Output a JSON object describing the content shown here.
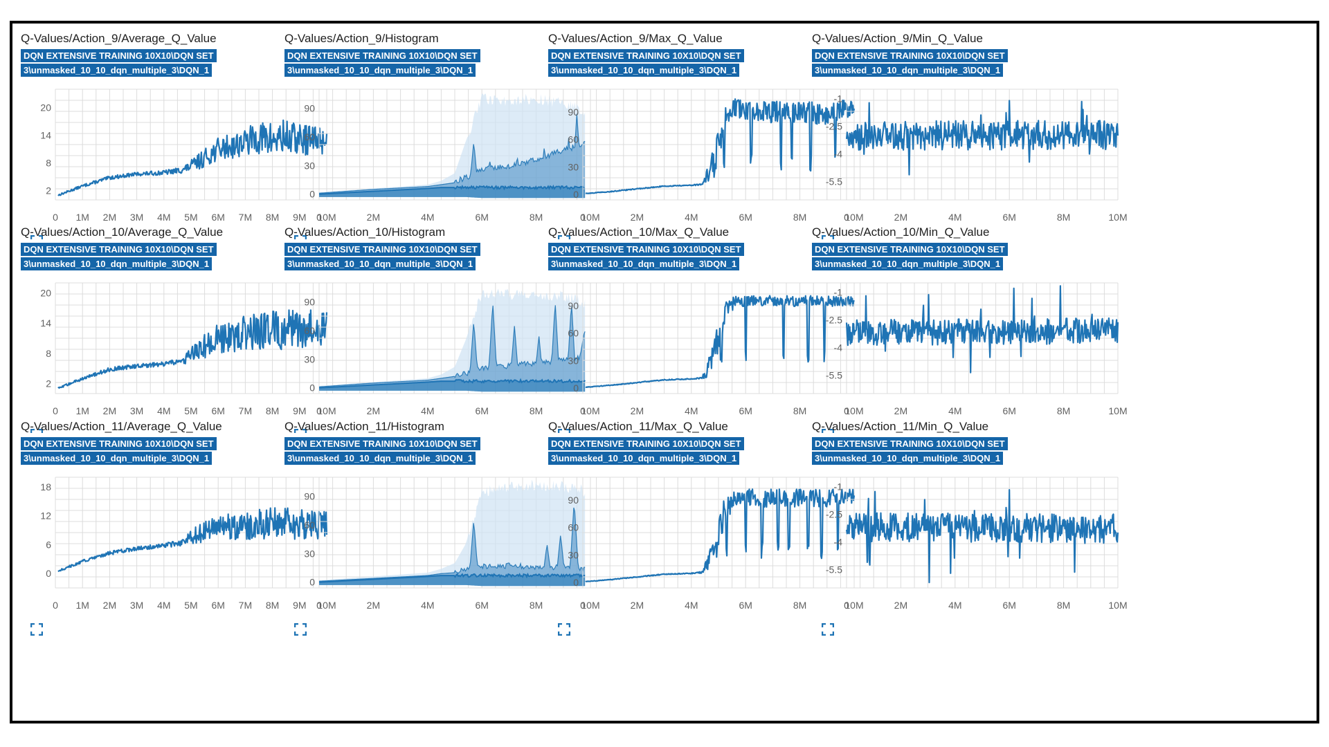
{
  "colors": {
    "series": "#1f74b5",
    "band": "#cfe3f3",
    "grid": "#dcdcdc",
    "tag_bg": "#1565a8"
  },
  "panels": [
    {
      "title": "Q-Values/Action_9/Average_Q_Value",
      "run_line1": "DQN EXTENSIVE TRAINING 10X10\\DQN SET",
      "run_line2": "3\\unmasked_10_10_dqn_multiple_3\\DQN_1",
      "expand_icon": "fullscreen-icon"
    },
    {
      "title": "Q-Values/Action_9/Histogram",
      "run_line1": "DQN EXTENSIVE TRAINING 10X10\\DQN SET",
      "run_line2": "3\\unmasked_10_10_dqn_multiple_3\\DQN_1",
      "expand_icon": "fullscreen-icon"
    },
    {
      "title": "Q-Values/Action_9/Max_Q_Value",
      "run_line1": "DQN EXTENSIVE TRAINING 10X10\\DQN SET",
      "run_line2": "3\\unmasked_10_10_dqn_multiple_3\\DQN_1",
      "expand_icon": "fullscreen-icon"
    },
    {
      "title": "Q-Values/Action_9/Min_Q_Value",
      "run_line1": "DQN EXTENSIVE TRAINING 10X10\\DQN SET",
      "run_line2": "3\\unmasked_10_10_dqn_multiple_3\\DQN_1",
      "expand_icon": "fullscreen-icon"
    },
    {
      "title": "Q-Values/Action_10/Average_Q_Value",
      "run_line1": "DQN EXTENSIVE TRAINING 10X10\\DQN SET",
      "run_line2": "3\\unmasked_10_10_dqn_multiple_3\\DQN_1",
      "expand_icon": "fullscreen-icon"
    },
    {
      "title": "Q-Values/Action_10/Histogram",
      "run_line1": "DQN EXTENSIVE TRAINING 10X10\\DQN SET",
      "run_line2": "3\\unmasked_10_10_dqn_multiple_3\\DQN_1",
      "expand_icon": "fullscreen-icon"
    },
    {
      "title": "Q-Values/Action_10/Max_Q_Value",
      "run_line1": "DQN EXTENSIVE TRAINING 10X10\\DQN SET",
      "run_line2": "3\\unmasked_10_10_dqn_multiple_3\\DQN_1",
      "expand_icon": "fullscreen-icon"
    },
    {
      "title": "Q-Values/Action_10/Min_Q_Value",
      "run_line1": "DQN EXTENSIVE TRAINING 10X10\\DQN SET",
      "run_line2": "3\\unmasked_10_10_dqn_multiple_3\\DQN_1",
      "expand_icon": "fullscreen-icon"
    },
    {
      "title": "Q-Values/Action_11/Average_Q_Value",
      "run_line1": "DQN EXTENSIVE TRAINING 10X10\\DQN SET",
      "run_line2": "3\\unmasked_10_10_dqn_multiple_3\\DQN_1",
      "expand_icon": "fullscreen-icon"
    },
    {
      "title": "Q-Values/Action_11/Histogram",
      "run_line1": "DQN EXTENSIVE TRAINING 10X10\\DQN SET",
      "run_line2": "3\\unmasked_10_10_dqn_multiple_3\\DQN_1",
      "expand_icon": "fullscreen-icon"
    },
    {
      "title": "Q-Values/Action_11/Max_Q_Value",
      "run_line1": "DQN EXTENSIVE TRAINING 10X10\\DQN SET",
      "run_line2": "3\\unmasked_10_10_dqn_multiple_3\\DQN_1",
      "expand_icon": "fullscreen-icon"
    },
    {
      "title": "Q-Values/Action_11/Min_Q_Value",
      "run_line1": "DQN EXTENSIVE TRAINING 10X10\\DQN SET",
      "run_line2": "3\\unmasked_10_10_dqn_multiple_3\\DQN_1",
      "expand_icon": "fullscreen-icon"
    }
  ],
  "chart_data": [
    {
      "type": "line",
      "kind": "average",
      "xlim": [
        0,
        10
      ],
      "ylim": [
        0,
        24
      ],
      "x_ticks": [
        0,
        1,
        2,
        3,
        4,
        5,
        6,
        7,
        8,
        9,
        10
      ],
      "x_tick_labels": [
        "0",
        "1M",
        "2M",
        "3M",
        "4M",
        "5M",
        "6M",
        "7M",
        "8M",
        "9M",
        "10M"
      ],
      "y_ticks": [
        2,
        8,
        14,
        20
      ],
      "y_tick_labels": [
        "2",
        "8",
        "14",
        "20"
      ],
      "grid": true,
      "x": [
        0.1,
        1,
        2,
        3,
        4,
        4.7,
        5.2,
        6,
        7,
        7.5,
        8,
        8.5,
        9,
        10
      ],
      "values": [
        1,
        3,
        4.8,
        5.6,
        5.9,
        6.5,
        8,
        11,
        12.5,
        13.5,
        13,
        13.5,
        13,
        13
      ],
      "noise": [
        0.2,
        0.3,
        0.4,
        0.4,
        0.5,
        0.7,
        1.6,
        2.5,
        3,
        3.5,
        4,
        4,
        3.5,
        3
      ]
    },
    {
      "type": "area",
      "kind": "histogram",
      "xlim": [
        0,
        10
      ],
      "ylim": [
        -6,
        110
      ],
      "x_ticks": [
        0,
        2,
        4,
        6,
        8,
        10
      ],
      "x_tick_labels": [
        "0",
        "2M",
        "4M",
        "6M",
        "8M",
        "10M"
      ],
      "y_ticks": [
        0,
        30,
        60,
        90
      ],
      "y_tick_labels": [
        "0",
        "30",
        "60",
        "90"
      ],
      "grid": true,
      "x": [
        0,
        2,
        4,
        4.5,
        5,
        5.4,
        6,
        7,
        8,
        9,
        9.6,
        9.8
      ],
      "band_upper": [
        2,
        6,
        10,
        14,
        22,
        55,
        100,
        98,
        100,
        95,
        90,
        85
      ],
      "band_lower": [
        -3,
        -3,
        -3,
        -3,
        -3,
        -3,
        -4,
        -4,
        -4,
        -4,
        -4,
        -4
      ],
      "series_upper": [
        1,
        5,
        8,
        10,
        12,
        16,
        25,
        28,
        35,
        45,
        50,
        55
      ],
      "median": [
        0,
        3,
        6,
        7,
        7,
        7,
        7,
        7,
        7,
        7,
        7,
        7
      ],
      "spike_x": [
        5.7,
        6.3,
        7.3,
        8.3,
        9.2,
        9.5
      ],
      "spike_y": [
        55,
        35,
        40,
        50,
        60,
        85
      ]
    },
    {
      "type": "line",
      "kind": "max",
      "xlim": [
        0,
        10
      ],
      "ylim": [
        -6,
        115
      ],
      "x_ticks": [
        0,
        2,
        4,
        6,
        8,
        10
      ],
      "x_tick_labels": [
        "0",
        "2M",
        "4M",
        "6M",
        "8M",
        "10M"
      ],
      "y_ticks": [
        0,
        30,
        60,
        90
      ],
      "y_tick_labels": [
        "0",
        "30",
        "60",
        "90"
      ],
      "grid": true,
      "x": [
        0.1,
        1,
        2,
        3,
        4,
        4.4,
        4.8,
        5.2,
        5.6,
        6,
        7,
        8,
        9,
        10
      ],
      "values": [
        1,
        3,
        6,
        9,
        10,
        11,
        30,
        80,
        95,
        92,
        90,
        90,
        88,
        95
      ],
      "noise": [
        0.3,
        0.4,
        0.5,
        0.5,
        0.5,
        1,
        20,
        15,
        10,
        10,
        12,
        12,
        12,
        10
      ],
      "drops": [
        5.2,
        6.2,
        7.3,
        7.7,
        8.4,
        9.3
      ]
    },
    {
      "type": "line",
      "kind": "min",
      "xlim": [
        0,
        10
      ],
      "ylim": [
        -6.5,
        -0.5
      ],
      "x_ticks": [
        0,
        2,
        4,
        6,
        8,
        10
      ],
      "x_tick_labels": [
        "0",
        "2M",
        "4M",
        "6M",
        "8M",
        "10M"
      ],
      "y_ticks": [
        -1,
        -2.5,
        -4,
        -5.5
      ],
      "y_tick_labels": [
        "-1",
        "-2.5",
        "-4",
        "-5.5"
      ],
      "grid": true,
      "x": [
        0,
        10
      ],
      "values": [
        -3,
        -3
      ],
      "noise": [
        0.8,
        0.8
      ]
    },
    {
      "type": "line",
      "kind": "average",
      "xlim": [
        0,
        10
      ],
      "ylim": [
        0,
        22
      ],
      "x_ticks": [
        0,
        1,
        2,
        3,
        4,
        5,
        6,
        7,
        8,
        9,
        10
      ],
      "x_tick_labels": [
        "0",
        "1M",
        "2M",
        "3M",
        "4M",
        "5M",
        "6M",
        "7M",
        "8M",
        "9M",
        "10M"
      ],
      "y_ticks": [
        2,
        8,
        14,
        20
      ],
      "y_tick_labels": [
        "2",
        "8",
        "14",
        "20"
      ],
      "grid": true,
      "x": [
        0.1,
        1,
        2,
        3,
        4,
        4.7,
        5.2,
        6,
        7,
        8,
        9,
        10
      ],
      "values": [
        1,
        3,
        4.8,
        5.5,
        5.8,
        6.5,
        8.5,
        11,
        12,
        12.5,
        13,
        13
      ],
      "noise": [
        0.2,
        0.3,
        0.4,
        0.4,
        0.5,
        0.7,
        2,
        3,
        3.5,
        4,
        4,
        3.5
      ]
    },
    {
      "type": "area",
      "kind": "histogram",
      "xlim": [
        0,
        10
      ],
      "ylim": [
        -6,
        110
      ],
      "x_ticks": [
        0,
        2,
        4,
        6,
        8,
        10
      ],
      "x_tick_labels": [
        "0",
        "2M",
        "4M",
        "6M",
        "8M",
        "10M"
      ],
      "y_ticks": [
        0,
        30,
        60,
        90
      ],
      "y_tick_labels": [
        "0",
        "30",
        "60",
        "90"
      ],
      "grid": true,
      "x": [
        0,
        2,
        4,
        4.5,
        5,
        5.4,
        6,
        7,
        8,
        9,
        9.6,
        9.8
      ],
      "band_upper": [
        2,
        6,
        10,
        14,
        22,
        50,
        100,
        98,
        98,
        96,
        92,
        88
      ],
      "band_lower": [
        -3,
        -3,
        -3,
        -3,
        -3,
        -3,
        -4,
        -4,
        -4,
        -4,
        -4,
        -4
      ],
      "series_upper": [
        1,
        5,
        8,
        10,
        12,
        14,
        20,
        22,
        25,
        28,
        30,
        60
      ],
      "median": [
        0,
        3,
        6,
        7,
        7,
        7,
        7,
        7,
        7,
        7,
        7,
        7
      ],
      "spike_x": [
        5.7,
        6.4,
        7.2,
        8.1,
        8.7,
        9.3
      ],
      "spike_y": [
        70,
        90,
        65,
        55,
        90,
        90
      ]
    },
    {
      "type": "line",
      "kind": "max",
      "xlim": [
        0,
        10
      ],
      "ylim": [
        -6,
        115
      ],
      "x_ticks": [
        0,
        2,
        4,
        6,
        8,
        10
      ],
      "x_tick_labels": [
        "0",
        "2M",
        "4M",
        "6M",
        "8M",
        "10M"
      ],
      "y_ticks": [
        0,
        30,
        60,
        90
      ],
      "y_tick_labels": [
        "0",
        "30",
        "60",
        "90"
      ],
      "grid": true,
      "x": [
        0.1,
        1,
        2,
        3,
        4,
        4.4,
        4.8,
        5.2,
        5.6,
        6,
        7,
        8,
        9,
        10
      ],
      "values": [
        1,
        3,
        6,
        9,
        10,
        11,
        30,
        80,
        95,
        95,
        95,
        95,
        95,
        95
      ],
      "noise": [
        0.3,
        0.4,
        0.5,
        0.5,
        0.5,
        1,
        20,
        15,
        6,
        6,
        6,
        6,
        6,
        5
      ],
      "drops": [
        5.1,
        6.0,
        7.4,
        8.3,
        8.9
      ]
    },
    {
      "type": "line",
      "kind": "min",
      "xlim": [
        0,
        10
      ],
      "ylim": [
        -6.5,
        -0.5
      ],
      "x_ticks": [
        0,
        2,
        4,
        6,
        8,
        10
      ],
      "x_tick_labels": [
        "0",
        "2M",
        "4M",
        "6M",
        "8M",
        "10M"
      ],
      "y_ticks": [
        -1,
        -2.5,
        -4,
        -5.5
      ],
      "y_tick_labels": [
        "-1",
        "-2.5",
        "-4",
        "-5.5"
      ],
      "grid": true,
      "x": [
        0,
        10
      ],
      "values": [
        -3.2,
        -3.1
      ],
      "noise": [
        0.7,
        0.7
      ]
    },
    {
      "type": "line",
      "kind": "average",
      "xlim": [
        0,
        10
      ],
      "ylim": [
        -3,
        20
      ],
      "x_ticks": [
        0,
        1,
        2,
        3,
        4,
        5,
        6,
        7,
        8,
        9,
        10
      ],
      "x_tick_labels": [
        "0",
        "1M",
        "2M",
        "3M",
        "4M",
        "5M",
        "6M",
        "7M",
        "8M",
        "9M",
        "10M"
      ],
      "y_ticks": [
        0,
        6,
        12,
        18
      ],
      "y_tick_labels": [
        "0",
        "6",
        "12",
        "18"
      ],
      "grid": true,
      "x": [
        0.1,
        1,
        2,
        3,
        4,
        4.7,
        5.2,
        6,
        7,
        8,
        9,
        10
      ],
      "values": [
        0.5,
        2.5,
        4.2,
        5.2,
        5.8,
        6.5,
        8,
        9.5,
        10,
        10.5,
        10.5,
        10
      ],
      "noise": [
        0.2,
        0.3,
        0.4,
        0.4,
        0.5,
        0.7,
        2,
        2.5,
        3,
        3.5,
        3.5,
        3
      ]
    },
    {
      "type": "area",
      "kind": "histogram",
      "xlim": [
        0,
        10
      ],
      "ylim": [
        -6,
        110
      ],
      "x_ticks": [
        0,
        2,
        4,
        6,
        8,
        10
      ],
      "x_tick_labels": [
        "0",
        "2M",
        "4M",
        "6M",
        "8M",
        "10M"
      ],
      "y_ticks": [
        0,
        30,
        60,
        90
      ],
      "y_tick_labels": [
        "0",
        "30",
        "60",
        "90"
      ],
      "grid": true,
      "x": [
        0,
        2,
        4,
        4.5,
        5,
        5.4,
        6,
        7,
        8,
        9,
        9.6,
        9.8
      ],
      "band_upper": [
        2,
        6,
        10,
        14,
        20,
        40,
        95,
        100,
        102,
        100,
        98,
        95
      ],
      "band_lower": [
        -3,
        -3,
        -3,
        -3,
        -3,
        -3,
        -4,
        -4,
        -4,
        -4,
        -4,
        -4
      ],
      "series_upper": [
        1,
        4,
        7,
        9,
        10,
        12,
        15,
        16,
        15,
        14,
        14,
        12
      ],
      "median": [
        0,
        3,
        6,
        7,
        7,
        7,
        7,
        7,
        7,
        7,
        7,
        7
      ],
      "spike_x": [
        5.7,
        8.4,
        8.9,
        9.4
      ],
      "spike_y": [
        65,
        40,
        50,
        85
      ]
    },
    {
      "type": "line",
      "kind": "max",
      "xlim": [
        0,
        10
      ],
      "ylim": [
        -6,
        115
      ],
      "x_ticks": [
        0,
        2,
        4,
        6,
        8,
        10
      ],
      "x_tick_labels": [
        "0",
        "2M",
        "4M",
        "6M",
        "8M",
        "10M"
      ],
      "y_ticks": [
        0,
        30,
        60,
        90
      ],
      "y_tick_labels": [
        "0",
        "30",
        "60",
        "90"
      ],
      "grid": true,
      "x": [
        0.1,
        1,
        2,
        3,
        4,
        4.4,
        4.8,
        5.2,
        5.6,
        6,
        7,
        8,
        9,
        10
      ],
      "values": [
        1,
        3,
        6,
        9,
        10,
        11,
        28,
        75,
        92,
        92,
        92,
        92,
        92,
        95
      ],
      "noise": [
        0.3,
        0.4,
        0.5,
        0.5,
        0.5,
        1,
        18,
        15,
        8,
        10,
        10,
        10,
        10,
        8
      ],
      "drops": [
        5.3,
        6.0,
        6.6,
        7.2,
        7.6,
        8.3,
        8.8,
        9.4
      ]
    },
    {
      "type": "line",
      "kind": "min",
      "xlim": [
        0,
        10
      ],
      "ylim": [
        -6.5,
        -0.5
      ],
      "x_ticks": [
        0,
        2,
        4,
        6,
        8,
        10
      ],
      "x_tick_labels": [
        "0",
        "2M",
        "4M",
        "6M",
        "8M",
        "10M"
      ],
      "y_ticks": [
        -1,
        -2.5,
        -4,
        -5.5
      ],
      "y_tick_labels": [
        "-1",
        "-2.5",
        "-4",
        "-5.5"
      ],
      "grid": true,
      "x": [
        0,
        10
      ],
      "values": [
        -3.2,
        -3.3
      ],
      "noise": [
        0.8,
        0.8
      ]
    }
  ]
}
